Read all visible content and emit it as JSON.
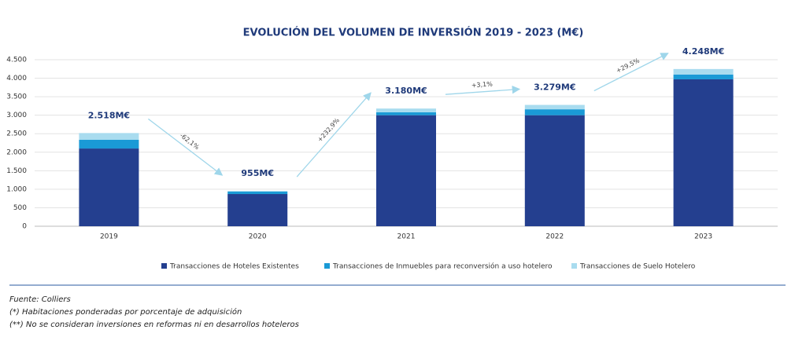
{
  "chart_data": {
    "type": "stacked_bar",
    "title": "EVOLUCIÓN DEL VOLUMEN DE INVERSIÓN 2019 - 2023 (M€)",
    "categories": [
      "2019",
      "2020",
      "2021",
      "2022",
      "2023"
    ],
    "series": [
      {
        "name": "Transacciones de Hoteles Existentes",
        "color": "#243f8f",
        "values": [
          2100,
          870,
          3000,
          3000,
          3970
        ]
      },
      {
        "name": "Transacciones de Inmuebles para reconversión a uso hotelero",
        "color": "#1a9ad6",
        "values": [
          235,
          65,
          80,
          160,
          130
        ]
      },
      {
        "name": "Transacciones de Suelo Hotelero",
        "color": "#a9dcef",
        "values": [
          183,
          20,
          100,
          119,
          148
        ]
      }
    ],
    "totals": {
      "values": [
        2518,
        955,
        3180,
        3279,
        4248
      ],
      "value_labels": [
        "2.518M€",
        "955M€",
        "3.180M€",
        "3.279M€",
        "4.248M€"
      ]
    },
    "changes": {
      "values": [
        -62.1,
        232.9,
        3.1,
        29.5
      ],
      "value_labels": [
        "-62,1%",
        "+232,9%",
        "+3,1%",
        "+29,5%"
      ]
    },
    "ylim": [
      0,
      4500
    ],
    "yticks": [
      0,
      500,
      {
        "value": 1000,
        "label": "1.000"
      },
      {
        "value": 1500,
        "label": "1.500"
      },
      {
        "value": 2000,
        "label": "2.000"
      },
      {
        "value": 2500,
        "label": "2.500"
      },
      {
        "value": 3000,
        "label": "3.000"
      },
      {
        "value": 3500,
        "label": "3.500"
      },
      {
        "value": 4000,
        "label": "4.000"
      },
      {
        "value": 4500,
        "label": "4.500"
      }
    ],
    "grid": true,
    "legend": "bottom",
    "footnotes": [
      "Fuente: Colliers",
      "(*) Habitaciones ponderadas por porcentaje de adquisición",
      "(**) No se consideran inversiones en reformas ni en desarrollos hoteleros"
    ]
  }
}
